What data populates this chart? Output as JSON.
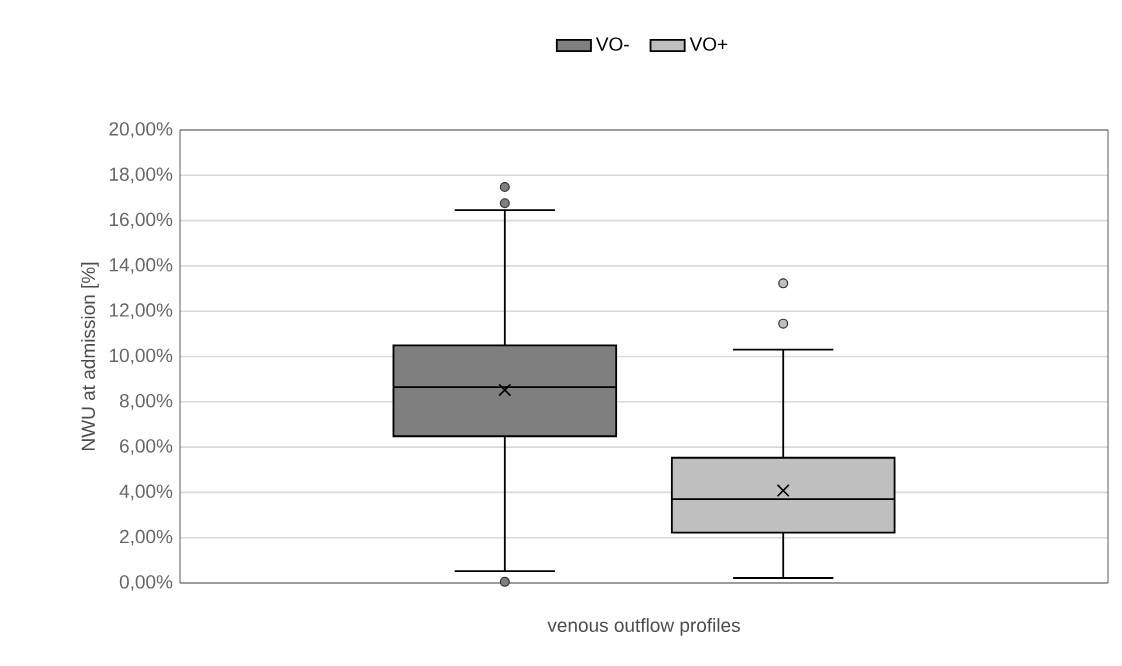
{
  "chart_data": {
    "type": "box",
    "xlabel": "venous outflow profiles",
    "ylabel": "NWU at admission [%]",
    "categories": [
      null
    ],
    "series": [
      {
        "name": "VO-",
        "color": "#7f7f7f",
        "boxes": [
          {
            "low": 0.52,
            "q1": 6.48,
            "median": 8.65,
            "q3": 10.49,
            "high": 16.46,
            "mean": 8.52,
            "outliers": [
              17.48,
              16.77,
              0.05
            ]
          }
        ]
      },
      {
        "name": "VO+",
        "color": "#bfbfbf",
        "boxes": [
          {
            "low": 0.22,
            "q1": 2.22,
            "median": 3.7,
            "q3": 5.53,
            "high": 10.3,
            "mean": 4.08,
            "outliers": [
              13.23,
              11.45
            ]
          }
        ]
      }
    ],
    "ylim": [
      0,
      20
    ],
    "yticks": [
      {
        "value": 0,
        "label": "0,00%"
      },
      {
        "value": 2,
        "label": "2,00%"
      },
      {
        "value": 4,
        "label": "4,00%"
      },
      {
        "value": 6,
        "label": "6,00%"
      },
      {
        "value": 8,
        "label": "8,00%"
      },
      {
        "value": 10,
        "label": "10,00%"
      },
      {
        "value": 12,
        "label": "12,00%"
      },
      {
        "value": 14,
        "label": "14,00%"
      },
      {
        "value": 16,
        "label": "16,00%"
      },
      {
        "value": 18,
        "label": "18,00%"
      },
      {
        "value": 20,
        "label": "20,00%"
      }
    ],
    "grid": "y",
    "legend": "top"
  }
}
